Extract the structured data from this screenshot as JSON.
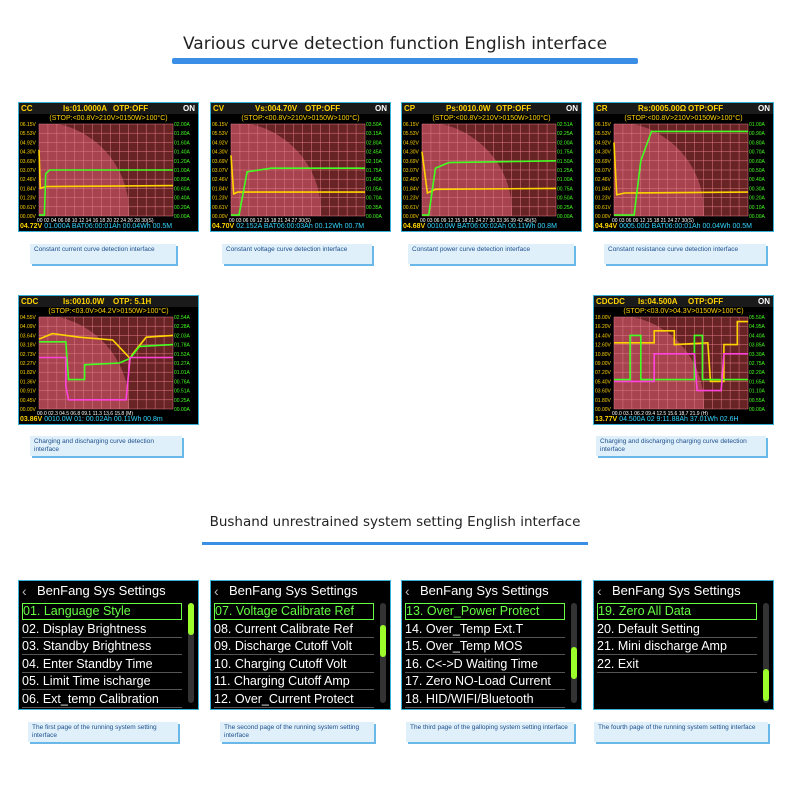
{
  "section1_title": "Various curve detection function English interface",
  "section2_title": "Bushand unrestrained system setting English interface",
  "charts": [
    {
      "mode": "CC",
      "setting": "Is:01.0000A",
      "otp": "OTP:OFF",
      "on": "ON",
      "stop": "(STOP:<00.8V>210V>0150W>100°C)",
      "left_ticks": [
        "06.15V",
        "05.53V",
        "04.92V",
        "04.30V",
        "03.69V",
        "03.07V",
        "02.46V",
        "01.84V",
        "01.23V",
        "00.61V",
        "00.00V"
      ],
      "right_ticks": [
        "02.00A",
        "01.80A",
        "01.60A",
        "01.40A",
        "01.20A",
        "01.00A",
        "00.80A",
        "00.60A",
        "00.40A",
        "00.20A",
        "00.00A"
      ],
      "x_ticks": "00 02 04 06 08 10 12 14 16 18 20 22 24 26 28 30(S)",
      "footer_v": "04.72V",
      "footer_rest": "01.000A BAT06:00:01Ah 00.04Wh 00.5M",
      "caption": "Constant current curve detection interface"
    },
    {
      "mode": "CV",
      "setting": "Vs:004.70V",
      "otp": "OTP:OFF",
      "on": "ON",
      "stop": "(STOP:<00.8V>210V>0150W>100°C)",
      "left_ticks": [
        "06.15V",
        "05.53V",
        "04.92V",
        "04.30V",
        "03.69V",
        "03.07V",
        "02.46V",
        "01.84V",
        "01.23V",
        "00.61V",
        "00.00V"
      ],
      "right_ticks": [
        "03.50A",
        "03.15A",
        "02.80A",
        "02.45A",
        "02.10A",
        "01.75A",
        "01.40A",
        "01.05A",
        "00.70A",
        "00.35A",
        "00.00A"
      ],
      "x_ticks": "00 03 06 09 12 15 18 21 24 27 30(S)",
      "footer_v": "04.70V",
      "footer_rest": "02.152A BAT06:00:03Ah 00.12Wh 00.7M",
      "caption": "Constant voltage curve detection interface"
    },
    {
      "mode": "CP",
      "setting": "Ps:0010.0W",
      "otp": "OTP:OFF",
      "on": "ON",
      "stop": "(STOP:<00.8V>210V>0150W>100°C)",
      "left_ticks": [
        "06.15V",
        "05.53V",
        "04.92V",
        "04.30V",
        "03.69V",
        "03.07V",
        "02.46V",
        "01.84V",
        "01.23V",
        "00.61V",
        "00.00V"
      ],
      "right_ticks": [
        "02.51A",
        "02.25A",
        "02.00A",
        "01.75A",
        "01.50A",
        "01.25A",
        "01.00A",
        "00.75A",
        "00.50A",
        "00.25A",
        "00.00A"
      ],
      "x_ticks": "00 03 06 09 12 15 18 21 24 27 30 33 36 39 42 45(S)",
      "footer_v": "04.68V",
      "footer_rest": "0010.0W BAT06:00:02Ah 00.11Wh 00.8M",
      "caption": "Constant power curve detection interface"
    },
    {
      "mode": "CR",
      "setting": "Rs:0005.00Ω",
      "otp": "OTP:OFF",
      "on": "ON",
      "stop": "(STOP:<00.8V>210V>0150W>100°C)",
      "left_ticks": [
        "06.15V",
        "05.53V",
        "04.92V",
        "04.30V",
        "03.69V",
        "03.07V",
        "02.46V",
        "01.84V",
        "01.23V",
        "00.61V",
        "00.00V"
      ],
      "right_ticks": [
        "01.00A",
        "00.90A",
        "00.80A",
        "00.70A",
        "00.60A",
        "00.50A",
        "00.40A",
        "00.30A",
        "00.20A",
        "00.10A",
        "00.00A"
      ],
      "x_ticks": "00 03 06 09 12 15 18 21 24 27 30(S)",
      "footer_v": "04.94V",
      "footer_rest": "0005.00Ω BAT06:00:01Ah 00.04Wh 00.5M",
      "caption": "Constant resistance curve detection interface"
    },
    {
      "mode": "CDC",
      "setting": "Is:0010.0W",
      "otp": "OTP: 5.1H",
      "on": "",
      "stop": "(STOP:<03.0V>04.2V>0150W>100°C)",
      "left_ticks": [
        "04.55V",
        "04.09V",
        "03.64V",
        "03.18V",
        "02.73V",
        "02.27V",
        "01.82V",
        "01.36V",
        "00.91V",
        "00.45V",
        "00.00V"
      ],
      "right_ticks": [
        "02.54A",
        "02.28A",
        "02.03A",
        "01.78A",
        "01.52A",
        "01.27A",
        "01.01A",
        "00.76A",
        "00.51A",
        "00.25A",
        "00.00A"
      ],
      "x_ticks": "00.0 02.3 04.5 06.8 09.1 11.3 13.6 15.8 (M)",
      "footer_v": "03.86V",
      "footer_rest": "0010.0W 01: 00.02Ah 00.11Wh 00.8m",
      "caption": "Charging and discharging curve detection interface"
    },
    {
      "mode": "CDCDC",
      "setting": "Is:04.500A",
      "otp": "OTP:OFF",
      "on": "ON",
      "stop": "(STOP:<03.0V>04.3V>0150W>100°C)",
      "left_ticks": [
        "18.00V",
        "16.20V",
        "14.40V",
        "12.60V",
        "10.80V",
        "09.00V",
        "07.20V",
        "05.40V",
        "03.60V",
        "01.80V",
        "00.00V"
      ],
      "right_ticks": [
        "05.50A",
        "04.95A",
        "04.40A",
        "03.85A",
        "03.30A",
        "02.75A",
        "02.20A",
        "01.65A",
        "01.10A",
        "00.55A",
        "00.00A"
      ],
      "x_ticks": "00.0 03.1 06.2 09.4 12.5 15.6 18.7 21.9 (H)",
      "footer_v": "13.77V",
      "footer_rest": "04.500A 02 9:11.88Ah 37.01Wh 02.6H",
      "caption": "Charging and discharging charging curve detection interface"
    }
  ],
  "menus": [
    {
      "title": "BenFang Sys Settings",
      "items": [
        "01. Language Style",
        "02. Display Brightness",
        "03. Standby Brightness",
        "04. Enter Standby Time",
        "05. Limit Time ischarge",
        "06. Ext_temp Calibration"
      ],
      "selected": 0,
      "caption": "The first page of the running system setting interface"
    },
    {
      "title": "BenFang Sys Settings",
      "items": [
        "07. Voltage Calibrate Ref",
        "08. Current Calibrate Ref",
        "09. Discharge Cutoff Volt",
        "10. Charging Cutoff Volt",
        "11. Charging Cutoff Amp",
        "12. Over_Current Protect"
      ],
      "selected": 0,
      "caption": "The second page of the running system setting interface"
    },
    {
      "title": "BenFang Sys Settings",
      "items": [
        "13. Over_Power Protect",
        "14. Over_Temp Ext.T",
        "15. Over_Temp MOS",
        "16. C<->D Waiting Time",
        "17. Zero NO-Load Current",
        "18. HID/WIFI/Bluetooth"
      ],
      "selected": 0,
      "caption": "The third page of the galloping system setting interface"
    },
    {
      "title": "BenFang Sys Settings",
      "items": [
        "19. Zero All Data",
        "20. Default Setting",
        "21. Mini discharge Amp",
        "22. Exit"
      ],
      "selected": 0,
      "caption": "The fourth page of the running system setting interface"
    }
  ],
  "colors": {
    "voltage": "#ffd400",
    "current": "#44ff22",
    "mah": "#ff44dd",
    "accent": "#37b0d8"
  }
}
